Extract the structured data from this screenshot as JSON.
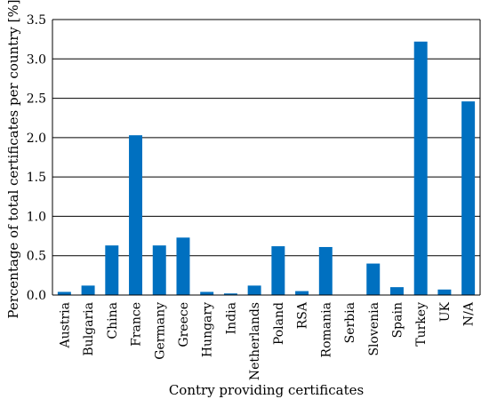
{
  "chart_data": {
    "type": "bar",
    "title": "",
    "xlabel": "Contry providing certificates",
    "ylabel": "Percentage of total certificates per country [%]",
    "ylim": [
      0,
      3.5
    ],
    "yticks": [
      0.0,
      0.5,
      1.0,
      1.5,
      2.0,
      2.5,
      3.0,
      3.5
    ],
    "ytick_labels": [
      "0.0",
      "0.5",
      "1.0",
      "1.5",
      "2.0",
      "2.5",
      "3.0",
      "3.5"
    ],
    "grid": true,
    "legend": "none",
    "bar_color": "#0070c0",
    "categories": [
      "Austria",
      "Bulgaria",
      "China",
      "France",
      "Germany",
      "Greece",
      "Hungary",
      "India",
      "Netherlands",
      "Poland",
      "RSA",
      "Romania",
      "Serbia",
      "Slovenia",
      "Spain",
      "Turkey",
      "UK",
      "N/A"
    ],
    "values": [
      0.04,
      0.12,
      0.63,
      2.03,
      0.63,
      0.73,
      0.04,
      0.02,
      0.12,
      0.62,
      0.05,
      0.61,
      0.0,
      0.4,
      0.1,
      3.22,
      0.07,
      2.46
    ]
  }
}
